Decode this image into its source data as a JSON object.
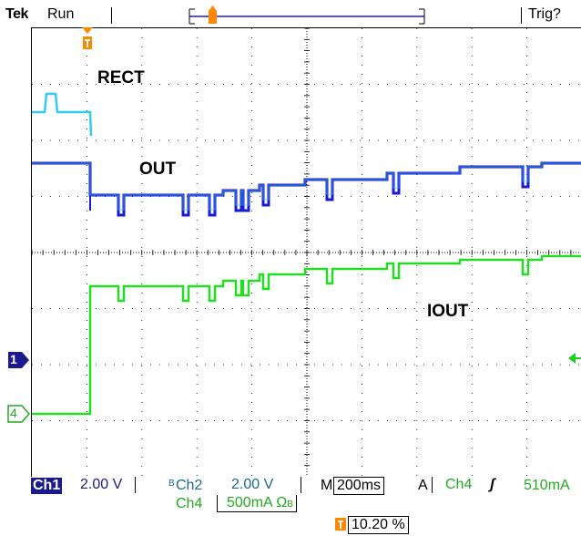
{
  "header": {
    "brand": "Tek",
    "run_state": "Run",
    "trigger_state": "Trig?"
  },
  "waveform_labels": {
    "rect": "RECT",
    "out": "OUT",
    "iout": "IOUT"
  },
  "channel_markers": {
    "ch1": "1",
    "ch4": "4"
  },
  "status": {
    "ch1_label": "Ch1",
    "ch1_scale": "2.00 V",
    "ch2_bw_symbol": "B",
    "ch2_label": "Ch2",
    "ch2_scale": "2.00 V",
    "ch4_label": "Ch4",
    "ch4_scale": "500mA",
    "ch4_unit_symbol": "Ω",
    "ch4_bw_symbol": "B",
    "timebase_prefix": "M",
    "timebase": "200ms",
    "trigger_prefix": "A",
    "trigger_source": "Ch4",
    "trigger_slope_symbol": "ʃ",
    "trigger_level": "510mA",
    "trigger_position": "10.20 %"
  },
  "colors": {
    "rect": "#33ccee",
    "out": "#1a1ad6",
    "iout": "#22dd22",
    "trigger": "#ff8800",
    "ch1_marker": "#1a1a8c",
    "ch4_marker": "#22aa22"
  }
}
